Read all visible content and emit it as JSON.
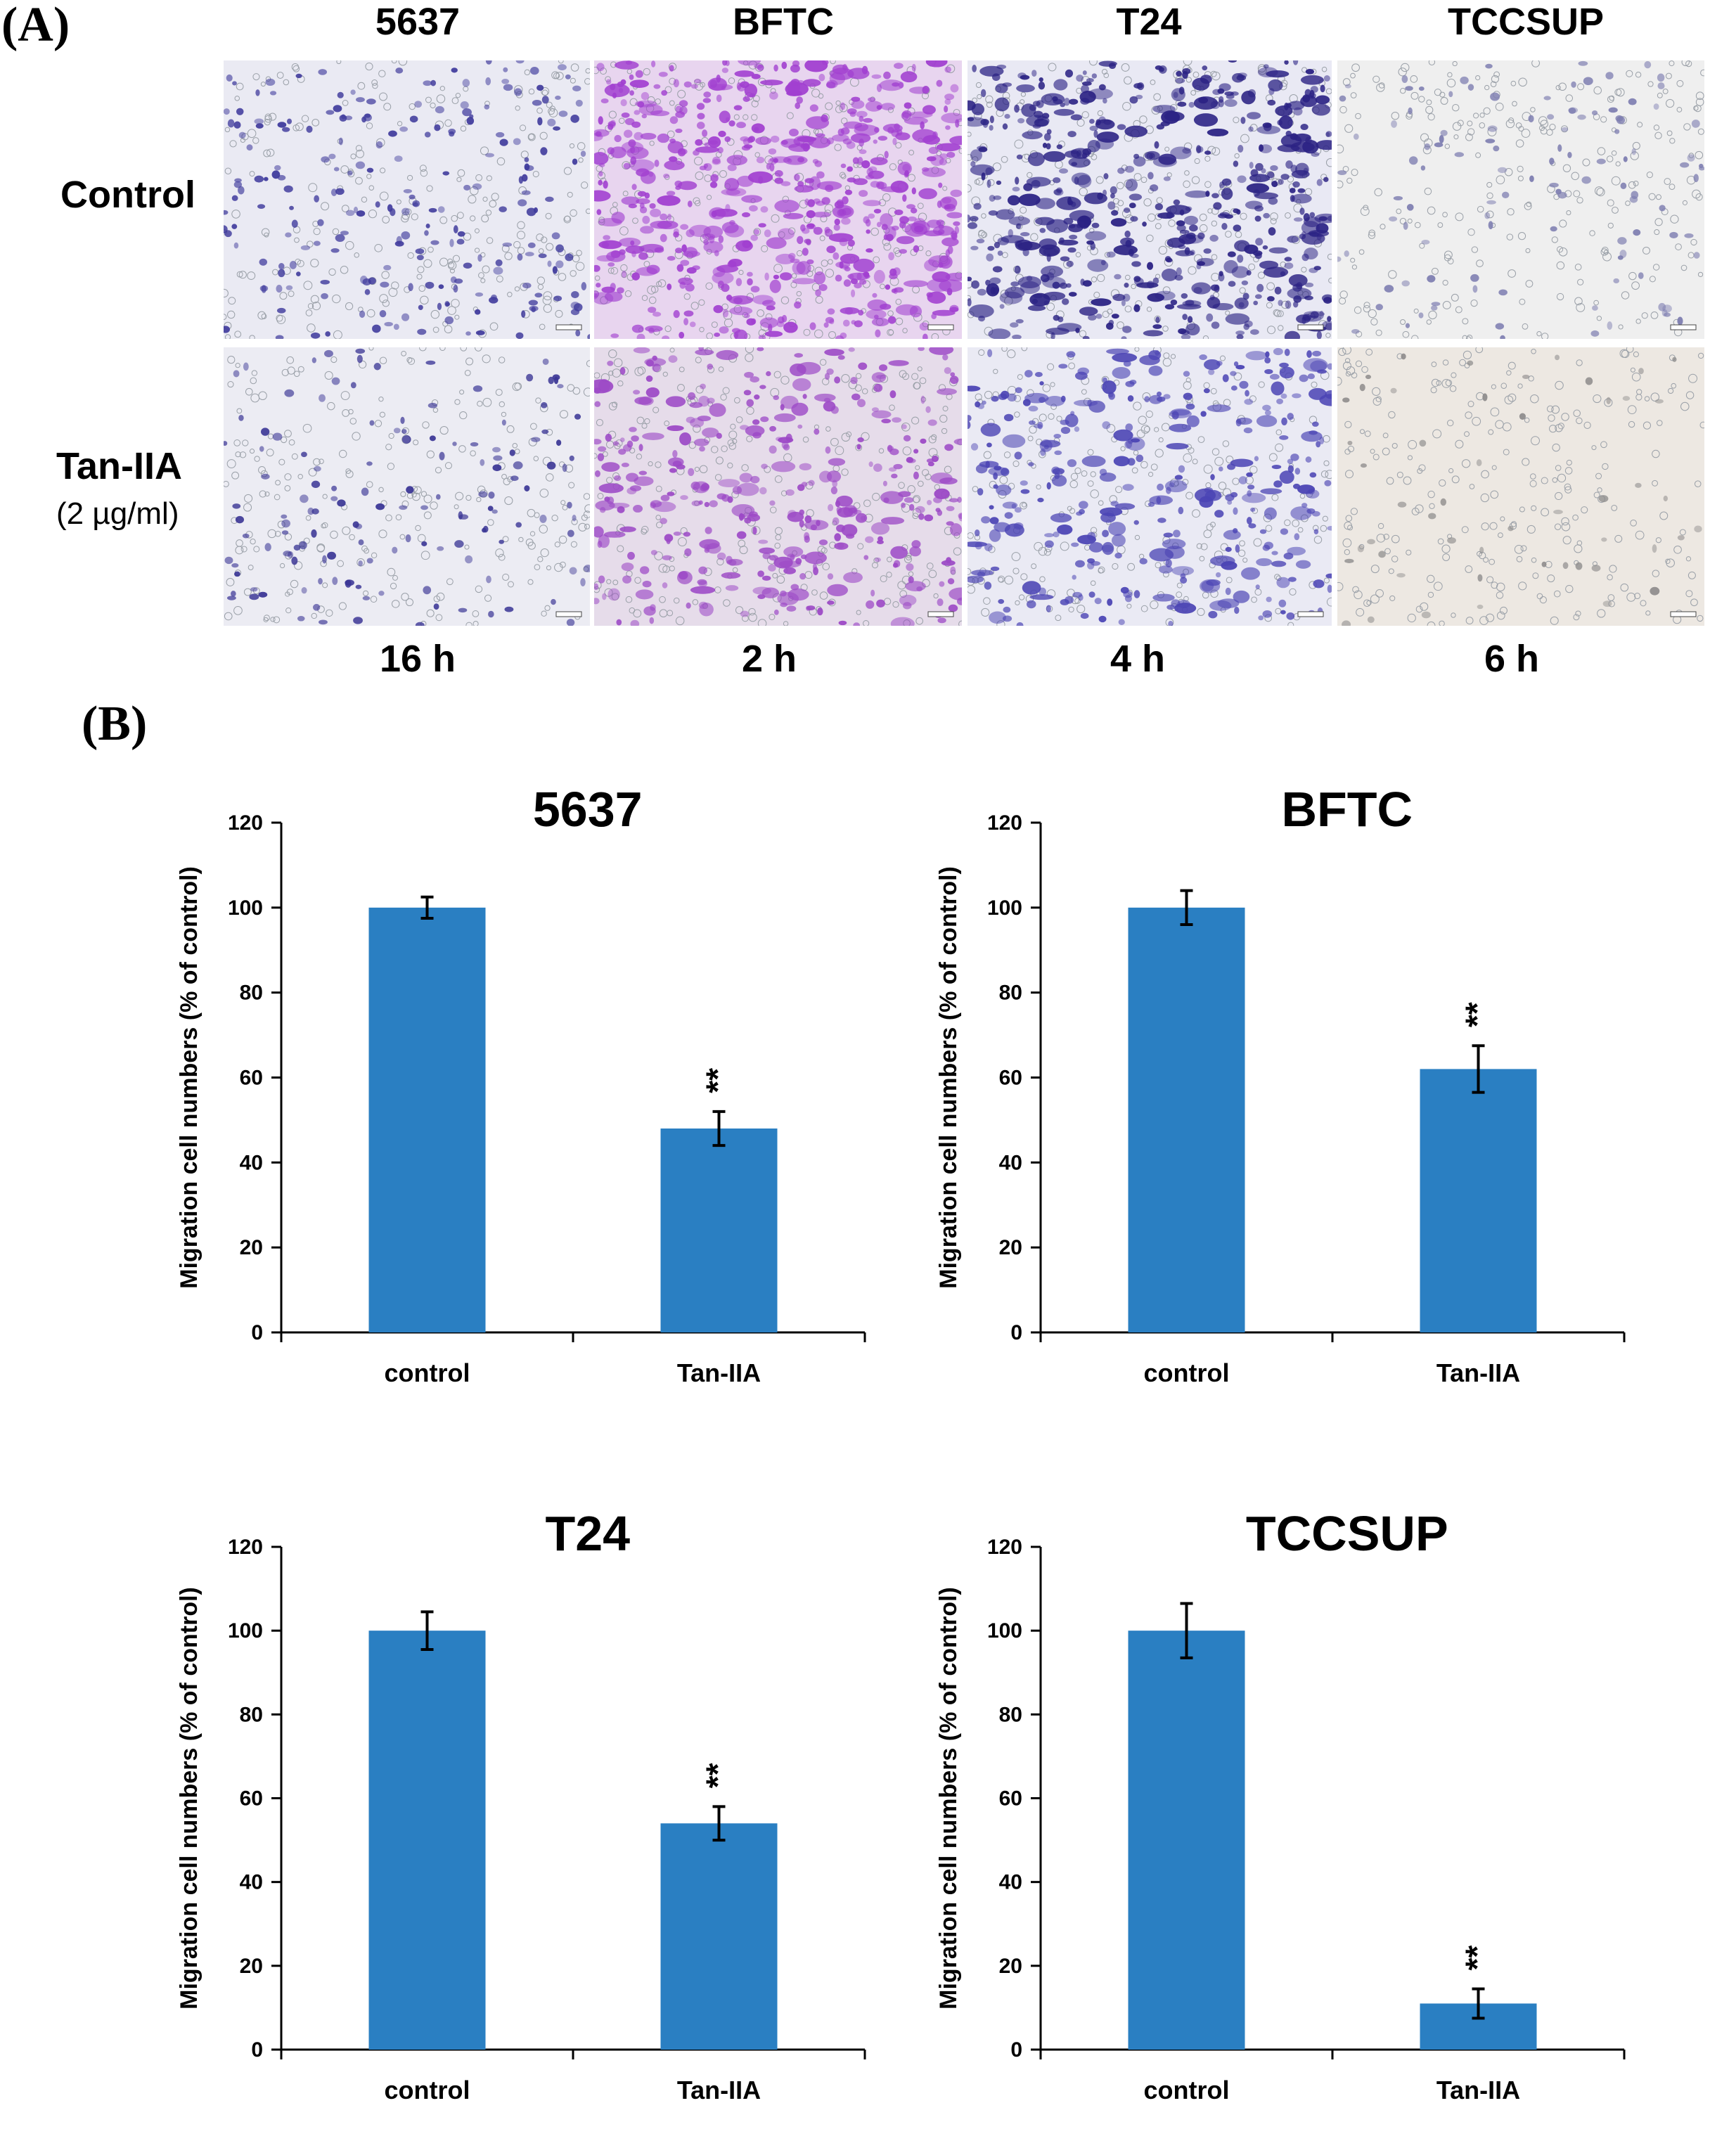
{
  "panel_a": {
    "label": "(A)",
    "columns": [
      "5637",
      "BFTC",
      "T24",
      "TCCSUP"
    ],
    "rows": [
      {
        "label": "Control",
        "sub": ""
      },
      {
        "label": "Tan-IIA",
        "sub": "(2 µg/ml)"
      }
    ],
    "times": [
      "16 h",
      "2 h",
      "4 h",
      "6 h"
    ],
    "images": [
      {
        "bg": "#eaeaf3",
        "cell": "#3f3a9c",
        "density": 0.35
      },
      {
        "bg": "#e8d5ef",
        "cell": "#a13fd0",
        "density": 1.0
      },
      {
        "bg": "#e9e9f4",
        "cell": "#2b2284",
        "density": 0.9
      },
      {
        "bg": "#efefef",
        "cell": "#7d7db0",
        "density": 0.15
      },
      {
        "bg": "#ececf3",
        "cell": "#3a3595",
        "density": 0.2
      },
      {
        "bg": "#e6dcea",
        "cell": "#9c48c6",
        "density": 0.6
      },
      {
        "bg": "#eaeaf4",
        "cell": "#4b44b4",
        "density": 0.55
      },
      {
        "bg": "#ede8e2",
        "cell": "#8e8c8c",
        "density": 0.05
      }
    ]
  },
  "panel_b": {
    "label": "(B)"
  },
  "colors": {
    "bar": "#2a7fc2",
    "axis": "#000000"
  },
  "chart_data": [
    {
      "type": "bar",
      "title": "5637",
      "categories": [
        "control",
        "Tan-IIA"
      ],
      "values": [
        100,
        48
      ],
      "errors": [
        2.5,
        4
      ],
      "significance": [
        "",
        "**"
      ],
      "ylabel": "Migration cell numbers (% of control)",
      "ylim": [
        0,
        120
      ],
      "yticks": [
        "0",
        "20",
        "40",
        "60",
        "80",
        "100",
        "120"
      ]
    },
    {
      "type": "bar",
      "title": "BFTC",
      "categories": [
        "control",
        "Tan-IIA"
      ],
      "values": [
        100,
        62
      ],
      "errors": [
        4,
        5.5
      ],
      "significance": [
        "",
        "**"
      ],
      "ylabel": "Migration cell numbers (% of control)",
      "ylim": [
        0,
        120
      ],
      "yticks": [
        "0",
        "20",
        "40",
        "60",
        "80",
        "100",
        "120"
      ]
    },
    {
      "type": "bar",
      "title": "T24",
      "categories": [
        "control",
        "Tan-IIA"
      ],
      "values": [
        100,
        54
      ],
      "errors": [
        4.5,
        4
      ],
      "significance": [
        "",
        "**"
      ],
      "ylabel": "Migration cell numbers (% of control)",
      "ylim": [
        0,
        120
      ],
      "yticks": [
        "0",
        "20",
        "40",
        "60",
        "80",
        "100",
        "120"
      ]
    },
    {
      "type": "bar",
      "title": "TCCSUP",
      "categories": [
        "control",
        "Tan-IIA"
      ],
      "values": [
        100,
        11
      ],
      "errors": [
        6.5,
        3.5
      ],
      "significance": [
        "",
        "**"
      ],
      "ylabel": "Migration cell numbers (% of control)",
      "ylim": [
        0,
        120
      ],
      "yticks": [
        "0",
        "20",
        "40",
        "60",
        "80",
        "100",
        "120"
      ]
    }
  ]
}
